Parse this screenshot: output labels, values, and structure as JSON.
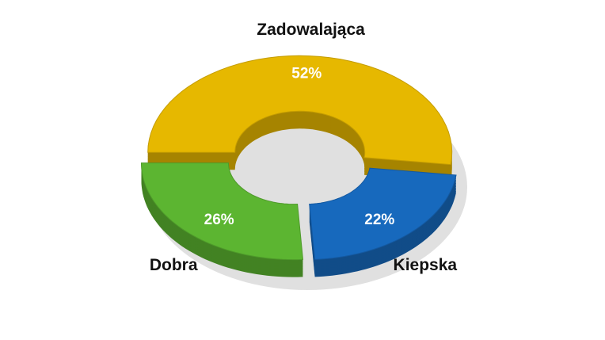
{
  "chart_data": {
    "type": "donut",
    "categories": [
      "Zadowalająca",
      "Kiepska",
      "Dobra"
    ],
    "values": [
      52,
      22,
      26
    ],
    "value_labels": [
      "52%",
      "22%",
      "26%"
    ],
    "colors": [
      "#e6b800",
      "#1769bd",
      "#5cb531"
    ]
  }
}
